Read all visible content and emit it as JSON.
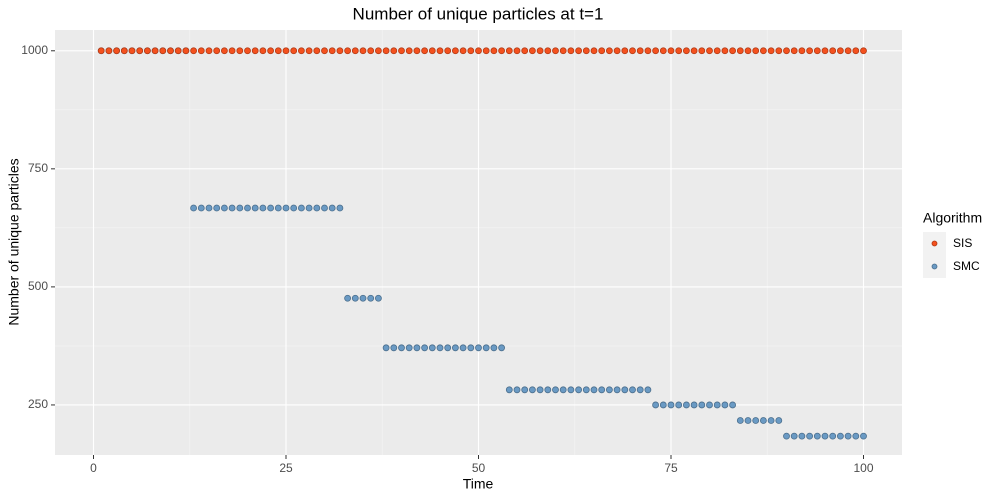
{
  "chart_data": {
    "type": "scatter",
    "title": "Number of unique particles at t=1",
    "x_label": "Time",
    "y_label": "Number of unique particles",
    "legend_title": "Algorithm",
    "legend_position": "right",
    "grid": true,
    "xlim": [
      -5,
      105
    ],
    "xticks": [
      0,
      25,
      50,
      75,
      100
    ],
    "ylim": [
      144,
      1044
    ],
    "yticks": [
      250,
      500,
      750,
      1000
    ],
    "x": [
      1,
      2,
      3,
      4,
      5,
      6,
      7,
      8,
      9,
      10,
      11,
      12,
      13,
      14,
      15,
      16,
      17,
      18,
      19,
      20,
      21,
      22,
      23,
      24,
      25,
      26,
      27,
      28,
      29,
      30,
      31,
      32,
      33,
      34,
      35,
      36,
      37,
      38,
      39,
      40,
      41,
      42,
      43,
      44,
      45,
      46,
      47,
      48,
      49,
      50,
      51,
      52,
      53,
      54,
      55,
      56,
      57,
      58,
      59,
      60,
      61,
      62,
      63,
      64,
      65,
      66,
      67,
      68,
      69,
      70,
      71,
      72,
      73,
      74,
      75,
      76,
      77,
      78,
      79,
      80,
      81,
      82,
      83,
      84,
      85,
      86,
      87,
      88,
      89,
      90,
      91,
      92,
      93,
      94,
      95,
      96,
      97,
      98,
      99,
      100
    ],
    "series": [
      {
        "name": "SIS",
        "color": "#f4511e",
        "values": [
          1000,
          1000,
          1000,
          1000,
          1000,
          1000,
          1000,
          1000,
          1000,
          1000,
          1000,
          1000,
          1000,
          1000,
          1000,
          1000,
          1000,
          1000,
          1000,
          1000,
          1000,
          1000,
          1000,
          1000,
          1000,
          1000,
          1000,
          1000,
          1000,
          1000,
          1000,
          1000,
          1000,
          1000,
          1000,
          1000,
          1000,
          1000,
          1000,
          1000,
          1000,
          1000,
          1000,
          1000,
          1000,
          1000,
          1000,
          1000,
          1000,
          1000,
          1000,
          1000,
          1000,
          1000,
          1000,
          1000,
          1000,
          1000,
          1000,
          1000,
          1000,
          1000,
          1000,
          1000,
          1000,
          1000,
          1000,
          1000,
          1000,
          1000,
          1000,
          1000,
          1000,
          1000,
          1000,
          1000,
          1000,
          1000,
          1000,
          1000,
          1000,
          1000,
          1000,
          1000,
          1000,
          1000,
          1000,
          1000,
          1000,
          1000,
          1000,
          1000,
          1000,
          1000,
          1000,
          1000,
          1000,
          1000,
          1000,
          1000
        ]
      },
      {
        "name": "SMC",
        "color": "#6a9ac4",
        "values": [
          1000,
          1000,
          1000,
          1000,
          1000,
          1000,
          1000,
          1000,
          1000,
          1000,
          1000,
          1000,
          667,
          667,
          667,
          667,
          667,
          667,
          667,
          667,
          667,
          667,
          667,
          667,
          667,
          667,
          667,
          667,
          667,
          667,
          667,
          667,
          476,
          476,
          476,
          476,
          476,
          371,
          371,
          371,
          371,
          371,
          371,
          371,
          371,
          371,
          371,
          371,
          371,
          371,
          371,
          371,
          371,
          282,
          282,
          282,
          282,
          282,
          282,
          282,
          282,
          282,
          282,
          282,
          282,
          282,
          282,
          282,
          282,
          282,
          282,
          282,
          250,
          250,
          250,
          250,
          250,
          250,
          250,
          250,
          250,
          250,
          250,
          217,
          217,
          217,
          217,
          217,
          217,
          184,
          184,
          184,
          184,
          184,
          184,
          184,
          184,
          184,
          184,
          184
        ]
      }
    ]
  }
}
